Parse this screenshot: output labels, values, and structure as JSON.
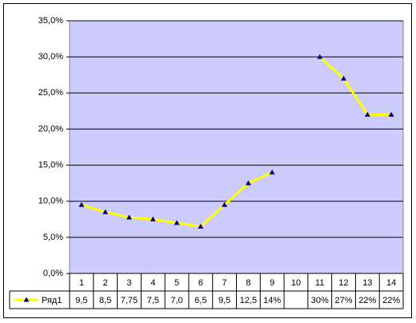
{
  "chart_data": {
    "type": "line",
    "categories": [
      "1",
      "2",
      "3",
      "4",
      "5",
      "6",
      "7",
      "8",
      "9",
      "10",
      "11",
      "12",
      "13",
      "14"
    ],
    "series": [
      {
        "name": "Ряд1",
        "color": "#ffff00",
        "marker_color": "#000080",
        "values": [
          9.5,
          8.5,
          7.75,
          7.5,
          7.0,
          6.5,
          9.5,
          12.5,
          14,
          null,
          30,
          27,
          22,
          22
        ],
        "value_labels": [
          "9,5",
          "8,5",
          "7,75",
          "7,5",
          "7,0",
          "6,5",
          "9,5",
          "12,5",
          "14%",
          null,
          "30%",
          "27%",
          "22%",
          "22%"
        ]
      }
    ],
    "ylim": [
      0,
      35
    ],
    "yticks": [
      {
        "value": 0,
        "label": "0,0%"
      },
      {
        "value": 5,
        "label": "5,0%"
      },
      {
        "value": 10,
        "label": "10,0%"
      },
      {
        "value": 15,
        "label": "15,0%"
      },
      {
        "value": 20,
        "label": "20,0%"
      },
      {
        "value": 25,
        "label": "25,0%"
      },
      {
        "value": 30,
        "label": "30,0%"
      },
      {
        "value": 35,
        "label": "35,0%"
      }
    ],
    "grid": true,
    "plot_background": "#ccccff",
    "data_table": true
  }
}
